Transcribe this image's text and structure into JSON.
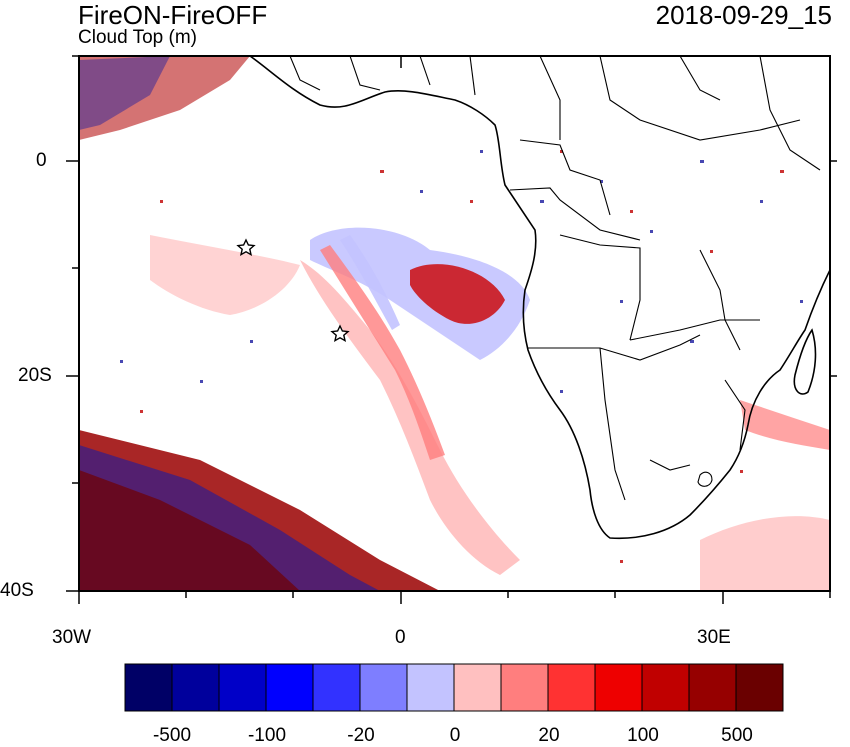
{
  "header": {
    "title": "FireON-FireOFF",
    "subtitle": "Cloud Top (m)",
    "timestamp": "2018-09-29_15"
  },
  "axes": {
    "x_ticks": [
      "30W",
      "0",
      "30E"
    ],
    "y_ticks": [
      "0",
      "20S",
      "40S"
    ]
  },
  "colorbar": {
    "labels": [
      "-500",
      "-100",
      "-20",
      "0",
      "20",
      "100",
      "500"
    ],
    "colors": [
      "#000066",
      "#00009c",
      "#0000c8",
      "#0000ff",
      "#3232ff",
      "#7e7eff",
      "#c3c3ff",
      "#ffc0c0",
      "#ff7e7e",
      "#ff3232",
      "#ee0000",
      "#c00000",
      "#960000",
      "#6a0000"
    ]
  },
  "markers": [
    {
      "name": "star-marker-1",
      "lon": -14.5,
      "lat": -8.0
    },
    {
      "name": "star-marker-2",
      "lon": -5.5,
      "lat": -16.0
    }
  ]
}
